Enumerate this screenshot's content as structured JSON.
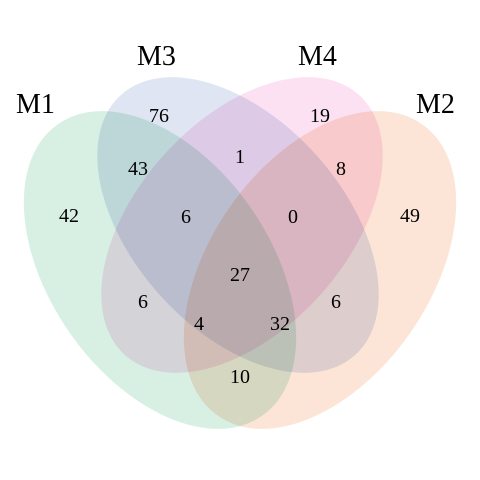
{
  "sets": [
    {
      "id": "M1",
      "label": "M1",
      "color": "#8fd3b0"
    },
    {
      "id": "M2",
      "label": "M2",
      "color": "#f7b48c"
    },
    {
      "id": "M3",
      "label": "M3",
      "color": "#a6b3dd"
    },
    {
      "id": "M4",
      "label": "M4",
      "color": "#f2a8d8"
    }
  ],
  "regions": [
    {
      "sets": [
        "M1"
      ],
      "count": "42"
    },
    {
      "sets": [
        "M2"
      ],
      "count": "49"
    },
    {
      "sets": [
        "M3"
      ],
      "count": "76"
    },
    {
      "sets": [
        "M4"
      ],
      "count": "19"
    },
    {
      "sets": [
        "M1",
        "M3"
      ],
      "count": "43"
    },
    {
      "sets": [
        "M3",
        "M4"
      ],
      "count": "1"
    },
    {
      "sets": [
        "M2",
        "M4"
      ],
      "count": "8"
    },
    {
      "sets": [
        "M1",
        "M3",
        "M4"
      ],
      "count": "6"
    },
    {
      "sets": [
        "M2",
        "M3",
        "M4"
      ],
      "count": "0"
    },
    {
      "sets": [
        "M1",
        "M2",
        "M3",
        "M4"
      ],
      "count": "27"
    },
    {
      "sets": [
        "M1",
        "M4"
      ],
      "count": "6"
    },
    {
      "sets": [
        "M2",
        "M3"
      ],
      "count": "6"
    },
    {
      "sets": [
        "M1",
        "M2",
        "M4"
      ],
      "count": "4"
    },
    {
      "sets": [
        "M1",
        "M2",
        "M3"
      ],
      "count": "32"
    },
    {
      "sets": [
        "M1",
        "M2"
      ],
      "count": "10"
    }
  ]
}
